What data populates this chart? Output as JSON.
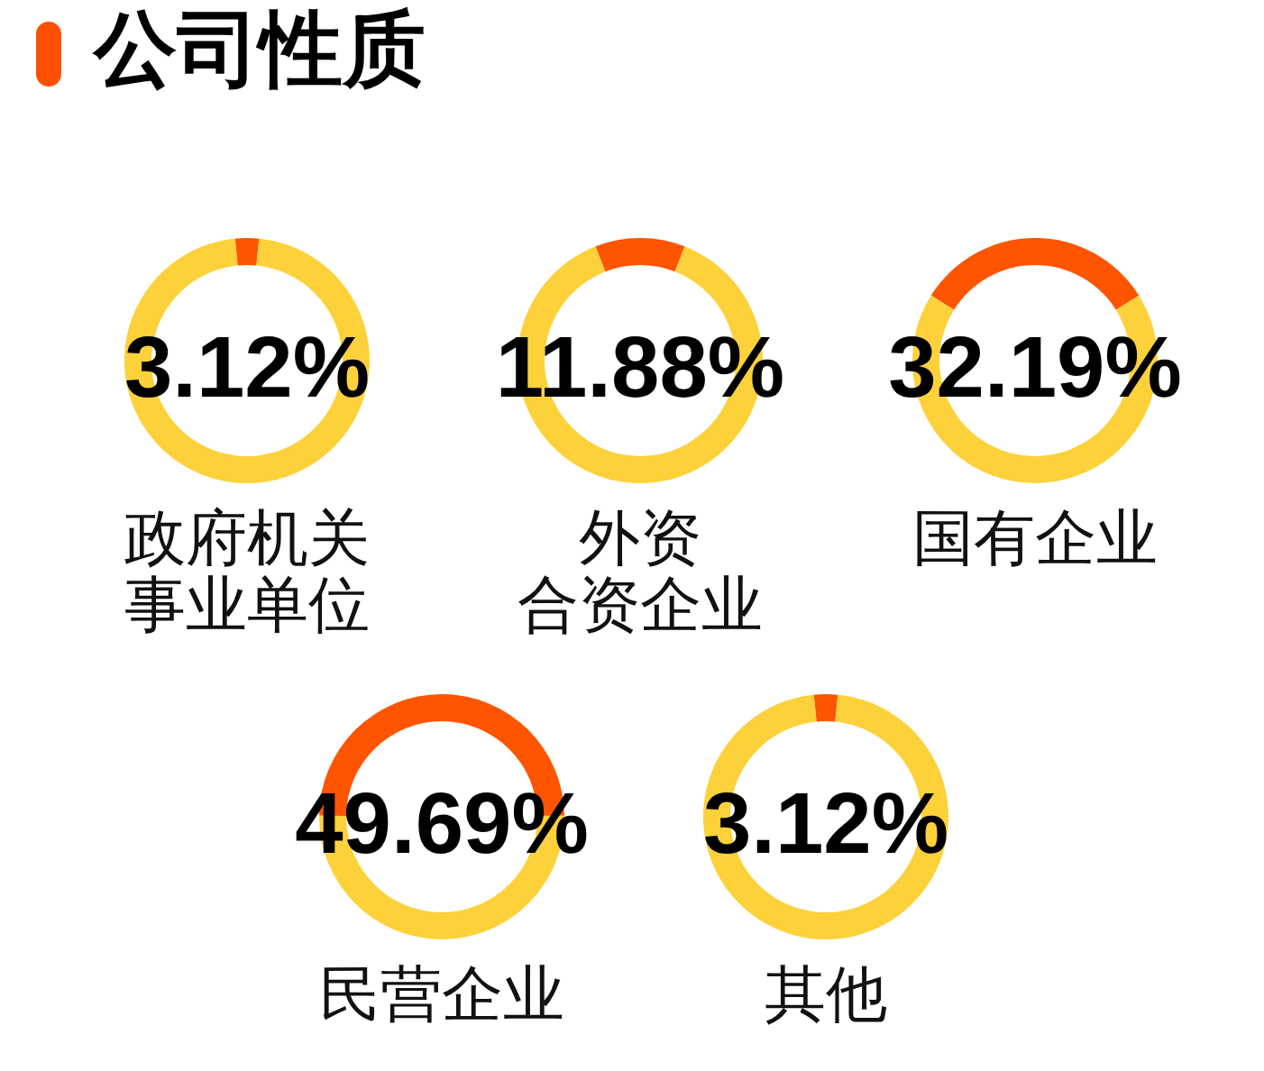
{
  "chart_data": [
    {
      "type": "donut",
      "title": "公司性质",
      "subtitle": "政府机关事业单位",
      "categories": [
        null,
        null
      ],
      "values": [
        3.12,
        96.88
      ],
      "colors": [
        "#ff5400",
        "#fdd13a"
      ],
      "annotations": [
        "3.12%"
      ]
    },
    {
      "type": "donut",
      "subtitle": "外资合资企业",
      "categories": [
        null,
        null
      ],
      "values": [
        11.88,
        88.12
      ],
      "colors": [
        "#ff5400",
        "#fdd13a"
      ],
      "annotations": [
        "11.88%"
      ]
    },
    {
      "type": "donut",
      "subtitle": "国有企业",
      "categories": [
        null,
        null
      ],
      "values": [
        32.19,
        67.81
      ],
      "colors": [
        "#ff5400",
        "#fdd13a"
      ],
      "annotations": [
        "32.19%"
      ]
    },
    {
      "type": "donut",
      "subtitle": "民营企业",
      "categories": [
        null,
        null
      ],
      "values": [
        49.69,
        50.31
      ],
      "colors": [
        "#ff5400",
        "#fdd13a"
      ],
      "annotations": [
        "49.69%"
      ]
    },
    {
      "type": "donut",
      "subtitle": "其他",
      "categories": [
        null,
        null
      ],
      "values": [
        3.12,
        96.88
      ],
      "colors": [
        "#ff5400",
        "#fdd13a"
      ],
      "annotations": [
        "3.12%"
      ]
    }
  ]
}
